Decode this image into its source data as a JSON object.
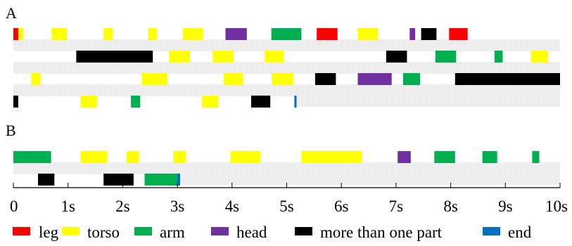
{
  "chart_data": {
    "type": "timeline",
    "x_tick_labels": [
      "0",
      "1s",
      "2s",
      "3s",
      "4s",
      "5s",
      "6s",
      "7s",
      "8s",
      "9s",
      "10s"
    ],
    "xlim": [
      0,
      10
    ],
    "legend": [
      {
        "key": "leg",
        "label": "leg",
        "color": "#ff0000"
      },
      {
        "key": "torso",
        "label": "torso",
        "color": "#ffff00"
      },
      {
        "key": "arm",
        "label": "arm",
        "color": "#00b050"
      },
      {
        "key": "head",
        "label": "head",
        "color": "#7030a0"
      },
      {
        "key": "multi",
        "label": "more than one part",
        "color": "#000000"
      },
      {
        "key": "end",
        "label": "end",
        "color": "#0070c0"
      }
    ],
    "panels": [
      {
        "label": "A",
        "rows": [
          [
            [
              0.0,
              0.09,
              "leg"
            ],
            [
              0.09,
              0.18,
              "torso"
            ],
            [
              0.7,
              0.98,
              "torso"
            ],
            [
              1.65,
              1.82,
              "torso"
            ],
            [
              2.47,
              2.63,
              "torso"
            ],
            [
              3.1,
              3.47,
              "torso"
            ],
            [
              3.88,
              4.27,
              "head"
            ],
            [
              4.72,
              5.27,
              "arm"
            ],
            [
              5.55,
              5.93,
              "leg"
            ],
            [
              6.3,
              6.67,
              "torso"
            ],
            [
              7.25,
              7.35,
              "head"
            ],
            [
              7.46,
              7.74,
              "multi"
            ],
            [
              7.97,
              8.31,
              "leg"
            ]
          ],
          [
            [
              1.15,
              2.55,
              "multi"
            ],
            [
              2.85,
              3.23,
              "torso"
            ],
            [
              3.65,
              4.03,
              "torso"
            ],
            [
              4.6,
              4.95,
              "torso"
            ],
            [
              6.82,
              7.2,
              "multi"
            ],
            [
              7.72,
              8.1,
              "arm"
            ],
            [
              8.8,
              8.95,
              "arm"
            ],
            [
              9.47,
              9.78,
              "torso"
            ]
          ],
          [
            [
              0.33,
              0.5,
              "torso"
            ],
            [
              2.35,
              2.82,
              "torso"
            ],
            [
              3.85,
              4.2,
              "torso"
            ],
            [
              4.73,
              5.12,
              "torso"
            ],
            [
              5.52,
              5.9,
              "multi"
            ],
            [
              6.3,
              6.92,
              "head"
            ],
            [
              7.13,
              7.44,
              "arm"
            ],
            [
              8.08,
              10.0,
              "multi"
            ]
          ],
          [
            [
              0.0,
              0.09,
              "multi"
            ],
            [
              1.23,
              1.53,
              "torso"
            ],
            [
              2.15,
              2.32,
              "arm"
            ],
            [
              3.45,
              3.75,
              "torso"
            ],
            [
              4.35,
              4.7,
              "multi"
            ],
            [
              5.14,
              5.18,
              "end"
            ]
          ]
        ]
      },
      {
        "label": "B",
        "rows": [
          [
            [
              0.0,
              0.69,
              "arm"
            ],
            [
              1.23,
              1.72,
              "torso"
            ],
            [
              2.07,
              2.3,
              "torso"
            ],
            [
              2.93,
              3.16,
              "torso"
            ],
            [
              3.97,
              4.52,
              "torso"
            ],
            [
              5.27,
              6.38,
              "torso"
            ],
            [
              7.03,
              7.27,
              "head"
            ],
            [
              7.7,
              8.08,
              "arm"
            ],
            [
              8.58,
              8.85,
              "arm"
            ],
            [
              9.49,
              9.62,
              "arm"
            ]
          ],
          [
            [
              0.45,
              0.75,
              "multi"
            ],
            [
              1.65,
              2.2,
              "multi"
            ],
            [
              2.4,
              3.0,
              "arm"
            ],
            [
              3.0,
              3.05,
              "end"
            ]
          ]
        ]
      }
    ]
  }
}
